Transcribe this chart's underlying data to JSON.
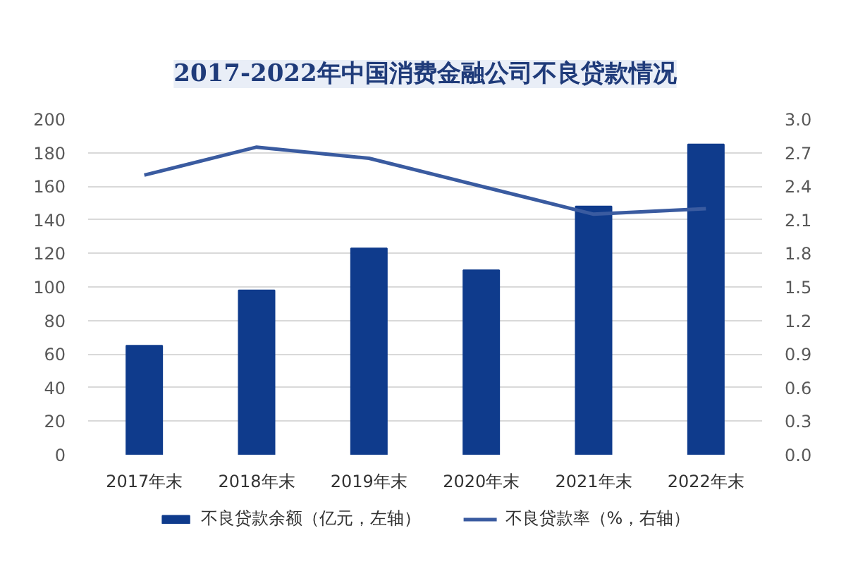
{
  "chart_data": {
    "type": "bar",
    "title": "2017-2022年中国消费金融公司不良贷款情况",
    "categories": [
      "2017年末",
      "2018年末",
      "2019年末",
      "2020年末",
      "2021年末",
      "2022年末"
    ],
    "series": [
      {
        "name": "不良贷款余额（亿元，左轴）",
        "color": "#0f3b8c",
        "values": [
          65,
          98,
          123,
          110,
          148,
          185
        ]
      },
      {
        "name": "不良贷款率（%，右轴）",
        "type": "line",
        "axis": "y2",
        "color": "#3a5ba0",
        "values": [
          2.5,
          2.75,
          2.65,
          2.4,
          2.15,
          2.2
        ]
      }
    ],
    "ylim": [
      0,
      200
    ],
    "yticks": [
      0,
      20,
      40,
      60,
      80,
      100,
      120,
      140,
      160,
      180,
      200
    ],
    "y2lim": [
      0,
      3.0
    ],
    "y2ticks": [
      {
        "value": 0,
        "label": "0.0"
      },
      {
        "value": 0.3,
        "label": "0.3"
      },
      {
        "value": 0.6,
        "label": "0.6"
      },
      {
        "value": 0.9,
        "label": "0.9"
      },
      {
        "value": 1.2,
        "label": "1.2"
      },
      {
        "value": 1.5,
        "label": "1.5"
      },
      {
        "value": 1.8,
        "label": "1.8"
      },
      {
        "value": 2.1,
        "label": "2.1"
      },
      {
        "value": 2.4,
        "label": "2.4"
      },
      {
        "value": 2.7,
        "label": "2.7"
      },
      {
        "value": 3.0,
        "label": "3.0"
      }
    ],
    "grid": "y",
    "legend": "bottom",
    "marker": "none",
    "line_style": "solid"
  }
}
